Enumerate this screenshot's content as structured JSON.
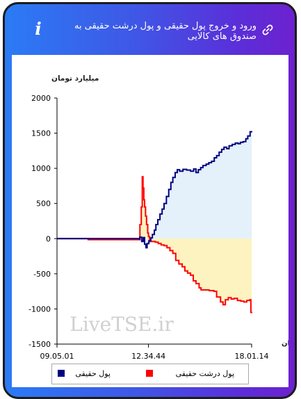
{
  "header": {
    "title": "ورود و خروج پول حقیقی و پول درشت حقیقی به صندوق های کالایی",
    "info_icon": "info-icon",
    "link_icon": "link-icon"
  },
  "colors": {
    "header_gradient_start": "#2b7bf5",
    "header_gradient_end": "#6d21cf",
    "real_money": "#000080",
    "big_real_money": "#ff0000",
    "area_positive": "#e4f1fa",
    "area_negative": "#fdf3c0"
  },
  "watermark": "LiveTSE.ir",
  "chart_data": {
    "type": "line",
    "ylabel": "میلیارد تومان",
    "xlabel": "زمان",
    "ylim": [
      -1500,
      2000
    ],
    "yticks": [
      2000,
      1500,
      1000,
      500,
      0,
      -500,
      -1000,
      -1500
    ],
    "xlim": [
      0,
      100
    ],
    "x_tick_labels": [
      {
        "x": 0,
        "label": "09.05.01"
      },
      {
        "x": 47,
        "label": "12.34.44"
      },
      {
        "x": 100,
        "label": "18.01.14"
      }
    ],
    "grid": false,
    "legend_position": "bottom",
    "series": [
      {
        "name": "پول حقیقی",
        "color": "#000080",
        "fill": "#e4f1fa",
        "x": [
          0,
          42.2,
          42.5,
          43.5,
          44.3,
          45.0,
          45.7,
          46.3,
          47.2,
          48.2,
          49.0,
          50.0,
          50.8,
          51.8,
          52.9,
          54.0,
          55.0,
          56.2,
          57.4,
          58.5,
          59.5,
          60.7,
          61.8,
          63.0,
          64.7,
          66.6,
          68.6,
          70.2,
          71.4,
          72.6,
          73.8,
          75.0,
          76.6,
          78.0,
          79.4,
          80.8,
          82.0,
          83.3,
          84.6,
          85.8,
          87.2,
          88.4,
          90.0,
          91.6,
          93.0,
          94.2,
          95.6,
          97.0,
          98.0,
          99.2,
          100
        ],
        "y": [
          0,
          -5,
          20,
          -40,
          15,
          -80,
          -130,
          -70,
          -30,
          10,
          60,
          120,
          200,
          270,
          350,
          420,
          500,
          600,
          700,
          800,
          870,
          940,
          980,
          960,
          985,
          975,
          960,
          990,
          940,
          980,
          1010,
          1040,
          1060,
          1080,
          1100,
          1150,
          1180,
          1230,
          1270,
          1300,
          1280,
          1320,
          1340,
          1360,
          1350,
          1370,
          1380,
          1420,
          1460,
          1520,
          1510
        ]
      },
      {
        "name": "پول درشت حقیقی",
        "color": "#ff0000",
        "fill": "#fdf3c0",
        "x": [
          0,
          16.0,
          42.0,
          42.6,
          43.3,
          43.8,
          44.2,
          44.6,
          45.0,
          45.5,
          46.0,
          46.6,
          47.0,
          47.6,
          49.0,
          50.5,
          52.0,
          53.5,
          55.0,
          56.5,
          58.0,
          59.5,
          61.0,
          62.6,
          64.3,
          65.7,
          67.1,
          68.6,
          70.0,
          71.4,
          73.0,
          74.0,
          76.0,
          78.2,
          80.6,
          82.0,
          84.0,
          85.3,
          86.5,
          88.0,
          89.5,
          91.0,
          92.7,
          94.4,
          96.0,
          97.5,
          99.0,
          99.6,
          100
        ],
        "y": [
          0,
          -15,
          -15,
          200,
          450,
          880,
          720,
          550,
          450,
          320,
          200,
          80,
          30,
          -40,
          -40,
          -50,
          -70,
          -90,
          -100,
          -130,
          -170,
          -210,
          -310,
          -360,
          -400,
          -460,
          -490,
          -520,
          -600,
          -640,
          -700,
          -730,
          -730,
          -740,
          -750,
          -830,
          -900,
          -940,
          -870,
          -840,
          -860,
          -850,
          -880,
          -890,
          -900,
          -880,
          -870,
          -1050,
          -1060
        ]
      }
    ]
  }
}
